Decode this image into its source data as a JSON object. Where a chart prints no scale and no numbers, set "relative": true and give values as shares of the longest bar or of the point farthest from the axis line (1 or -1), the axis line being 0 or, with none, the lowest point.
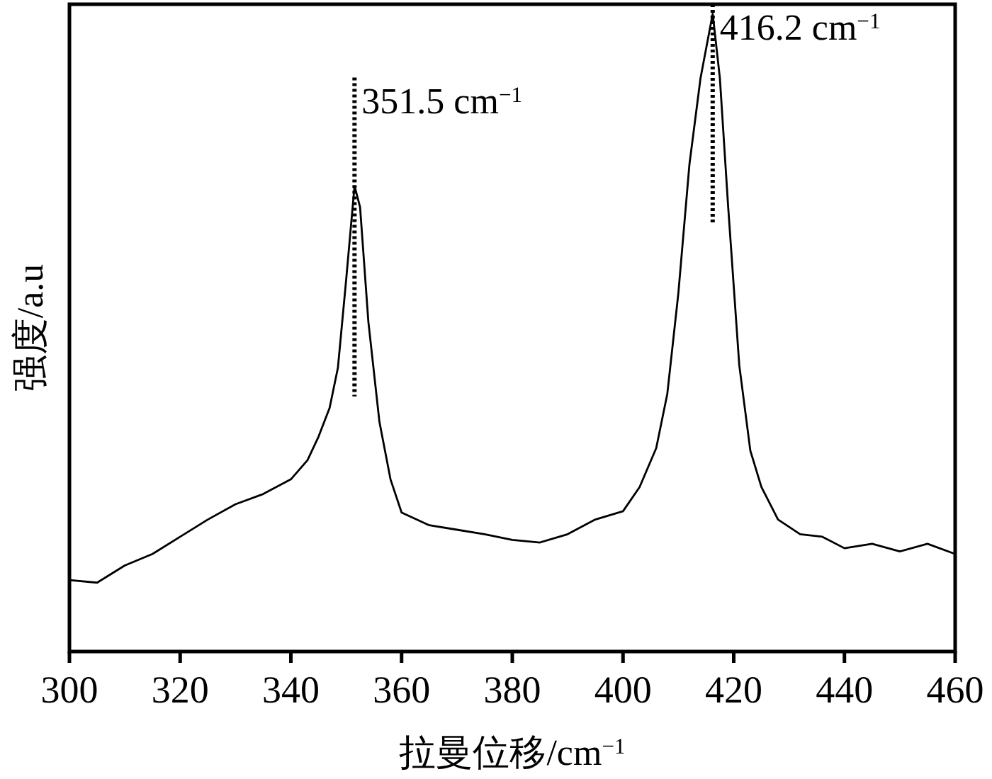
{
  "chart_data": {
    "type": "line",
    "xlabel": "拉曼位移/cm$^{−1}$",
    "ylabel": "强度/a.u",
    "relative": true,
    "xlim": [
      300,
      460
    ],
    "xticks": [
      300,
      320,
      340,
      360,
      380,
      400,
      420,
      440,
      460
    ],
    "grid": false,
    "marker": "none",
    "line_style": "solid",
    "series": [
      {
        "color": "#000000",
        "x": [
          300,
          305,
          310,
          315,
          320,
          325,
          330,
          335,
          340,
          343,
          345,
          347,
          348.5,
          350,
          351.5,
          352.5,
          354,
          356,
          358,
          360,
          365,
          370,
          375,
          380,
          385,
          390,
          395,
          400,
          403,
          406,
          408,
          410,
          412,
          414,
          416.2,
          417.5,
          419,
          421,
          423,
          425,
          428,
          432,
          436,
          440,
          445,
          450,
          455,
          460
        ],
        "values": [
          0.112,
          0.108,
          0.135,
          0.153,
          0.18,
          0.207,
          0.231,
          0.247,
          0.27,
          0.3,
          0.337,
          0.382,
          0.445,
          0.584,
          0.73,
          0.697,
          0.517,
          0.36,
          0.27,
          0.218,
          0.198,
          0.191,
          0.184,
          0.175,
          0.171,
          0.184,
          0.207,
          0.22,
          0.258,
          0.319,
          0.404,
          0.562,
          0.764,
          0.899,
          1,
          0.899,
          0.697,
          0.449,
          0.315,
          0.258,
          0.207,
          0.184,
          0.18,
          0.162,
          0.169,
          0.157,
          0.169,
          0.153
        ]
      }
    ],
    "ref_lines": [
      {
        "axis": "x",
        "value": 351.5,
        "label": "351.5 cm$^{−1}$",
        "line_style": "dotted",
        "color": "#000000"
      },
      {
        "axis": "x",
        "value": 416.2,
        "label": "416.2 cm$^{−1}$",
        "line_style": "dotted",
        "color": "#000000"
      }
    ]
  }
}
